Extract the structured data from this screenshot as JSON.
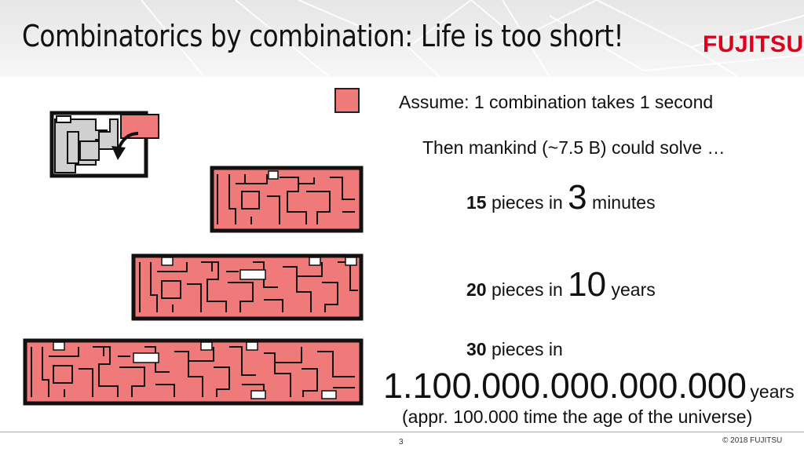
{
  "title": "Combinatorics by combination: Life is too short!",
  "logo": "FUJITSU",
  "assumption": "Assume: 1 combination takes 1 second",
  "intro": "Then mankind (~7.5 B) could solve …",
  "rows": [
    {
      "pieces": "15",
      "mid": "pieces in",
      "duration": "3",
      "unit": "minutes"
    },
    {
      "pieces": "20",
      "mid": "pieces in",
      "duration": "10",
      "unit": "years"
    },
    {
      "pieces": "30",
      "mid": "pieces in",
      "duration": "1.100.000.000.000.000",
      "unit": "years"
    }
  ],
  "note": "(appr. 100.000 time the age of the universe)",
  "page_number": "3",
  "copyright": "© 2018 FUJITSU",
  "colors": {
    "piece_fill": "#f07a7a",
    "board_border": "#111111",
    "gray_piece": "#d0d0d0",
    "brand_red": "#e0001a"
  }
}
